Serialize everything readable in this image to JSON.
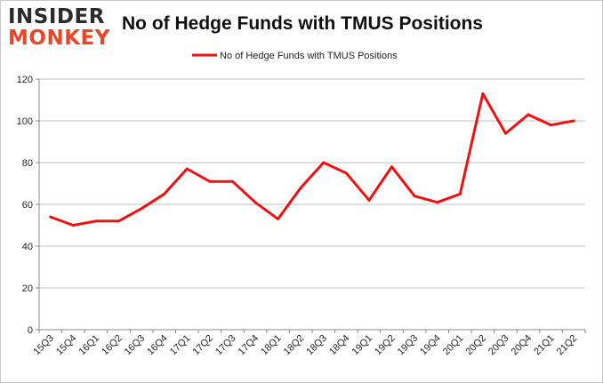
{
  "logo": {
    "line1": "INSIDER",
    "line2": "MONKEY"
  },
  "colors": {
    "series": "#ee1111",
    "grid": "#c0c0c0",
    "axis": "#888888",
    "logo_dark": "#2b2b2b",
    "logo_accent": "#e8472b"
  },
  "chart_data": {
    "type": "line",
    "title": "No of Hedge Funds with TMUS Positions",
    "xlabel": "",
    "ylabel": "",
    "ylim": [
      0,
      120
    ],
    "yticks": [
      0,
      20,
      40,
      60,
      80,
      100,
      120
    ],
    "grid": true,
    "legend_position": "top-center",
    "categories": [
      "15Q3",
      "15Q4",
      "16Q1",
      "16Q2",
      "16Q3",
      "16Q4",
      "17Q1",
      "17Q2",
      "17Q3",
      "17Q4",
      "18Q1",
      "18Q2",
      "18Q3",
      "18Q4",
      "19Q1",
      "19Q2",
      "19Q3",
      "19Q4",
      "20Q1",
      "20Q2",
      "20Q3",
      "20Q4",
      "21Q1",
      "21Q2"
    ],
    "series": [
      {
        "name": "No of Hedge Funds with TMUS Positions",
        "color": "#ee1111",
        "values": [
          54,
          50,
          52,
          52,
          58,
          65,
          77,
          71,
          71,
          61,
          53,
          68,
          80,
          75,
          62,
          78,
          64,
          61,
          65,
          113,
          94,
          103,
          98,
          100
        ]
      }
    ]
  }
}
